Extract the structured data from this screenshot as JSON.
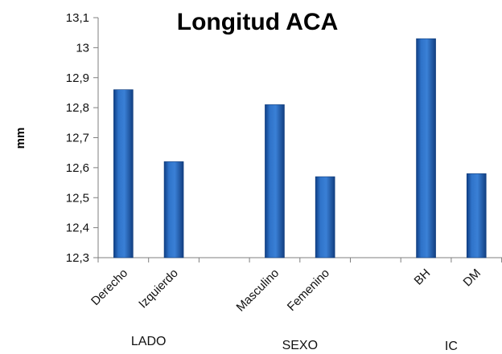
{
  "chart_data": {
    "type": "bar",
    "title": "Longitud ACA",
    "ylabel": "mm",
    "xlabel": "",
    "ylim": [
      12.3,
      13.1
    ],
    "yticks": [
      "12,3",
      "12,4",
      "12,5",
      "12,6",
      "12,7",
      "12,8",
      "12,9",
      "13",
      "13,1"
    ],
    "groups": [
      {
        "name": "LADO",
        "categories": [
          "Derecho",
          "Izquierdo"
        ],
        "values": [
          12.86,
          12.62
        ]
      },
      {
        "name": "SEXO",
        "categories": [
          "Masculino",
          "Femenino"
        ],
        "values": [
          12.81,
          12.57
        ]
      },
      {
        "name": "IC",
        "categories": [
          "BH",
          "DM"
        ],
        "values": [
          13.03,
          12.58
        ]
      }
    ],
    "bar_color": "#1f5fb0",
    "grid": false,
    "legend": "none"
  }
}
